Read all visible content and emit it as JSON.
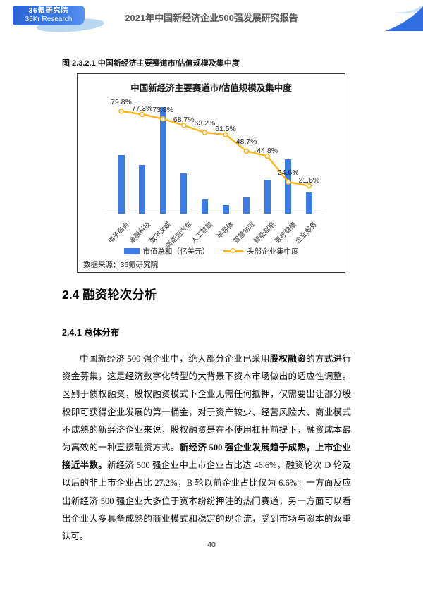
{
  "header": {
    "logo_line1": "36氪研究院",
    "logo_line2": "36Kr Research",
    "title": "2021年中国新经济企业500强发展研究报告"
  },
  "figure": {
    "caption": "图 2.3.2.1 中国新经济主要赛道市/估值规模及集中度",
    "source": "数据来源：36氪研究院"
  },
  "chart_data": {
    "type": "bar",
    "subtype": "bar-line-combo",
    "title": "中国新经济主要赛道市/估值规模及集中度",
    "categories": [
      "电子商务",
      "金融科技",
      "数字文娱",
      "新能源汽车",
      "人工智能",
      "半导体",
      "智慧物流",
      "智能制造",
      "医疗健康",
      "企业服务"
    ],
    "series": [
      {
        "name": "市值总和（亿美元）",
        "type": "bar",
        "values_relative_estimate": [
          55,
          46,
          100,
          38,
          13,
          8,
          15,
          32,
          51,
          20
        ]
      },
      {
        "name": "头部企业集中度",
        "type": "line",
        "values_percent": [
          79.8,
          77.3,
          73.8,
          68.7,
          63.2,
          61.5,
          48.7,
          44.8,
          24.6,
          21.6
        ]
      }
    ],
    "point_labels": [
      "79.8%",
      "77.3%",
      "73.8%",
      "68.7%",
      "63.2%",
      "61.5%",
      "48.7%",
      "44.8%",
      "24.6%",
      "21.6%"
    ],
    "legend": [
      "市值总和（亿美元）",
      "头部企业集中度"
    ],
    "legend_position": "bottom",
    "gridlines": false,
    "value_axis_labels_visible": false,
    "line_axis_range_percent": [
      0,
      100
    ],
    "colors": {
      "bar": "#3b7be5",
      "line": "#fdb515"
    }
  },
  "sections": {
    "h2": "2.4 融资轮次分析",
    "h3": "2.4.1 总体分布"
  },
  "paragraph": {
    "segments": [
      {
        "text": "中国新经济 500 强企业中，绝大部分企业已采用",
        "bold": false
      },
      {
        "text": "股权融资",
        "bold": true
      },
      {
        "text": "的方式进行资金募集，这是经济数字化转型的大背景下资本市场做出的适应性调整。区别于债权融资，股权融资模式下企业无需任何抵押，仅需要出让部分股权即可获得企业发展的第一桶金，对于资产较少、经营风险大、商业模式不成熟的新经济企业来说，股权融资是在不使用杠杆前提下，融资成本最为高效的一种直接融资方式。",
        "bold": false
      },
      {
        "text": "新经济 500 强企业发展趋于成熟，上市企业接近半数。",
        "bold": true
      },
      {
        "text": "新经济 500 强企业中上市企业占比达 46.6%，融资轮次 D 轮及以后的非上市企业占比 27.2%，B 轮以前企业占比仅为 6.6%。一方面反应出新经济 500 强企业大多位于资本纷纷押注的热门赛道，另一方面可以看出企业大多具备成熟的商业模式和稳定的现金流，受到市场与资本的双重认可。",
        "bold": false
      }
    ]
  },
  "footer": {
    "page_number": "40"
  }
}
